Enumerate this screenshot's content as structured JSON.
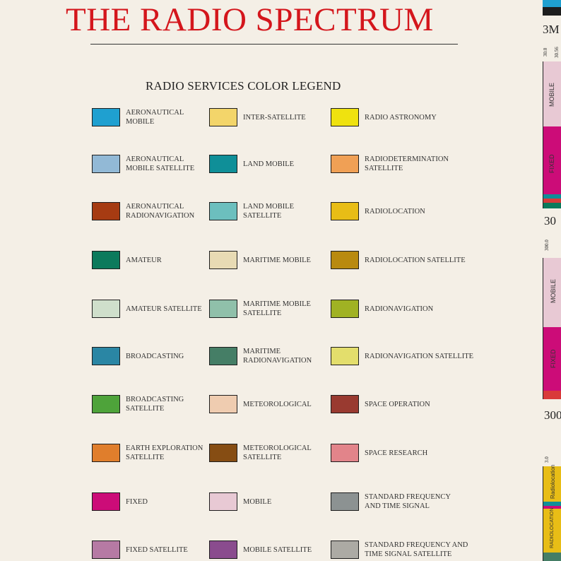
{
  "header": {
    "title": "THE RADIO SPECTRUM",
    "legend_title": "RADIO SERVICES COLOR LEGEND"
  },
  "legend": {
    "col1": [
      {
        "label": "AERONAUTICAL\nMOBILE",
        "color": "#1fa0d0"
      },
      {
        "label": "AERONAUTICAL\nMOBILE SATELLITE",
        "color": "#92b9d6"
      },
      {
        "label": "AERONAUTICAL\nRADIONAVIGATION",
        "color": "#a63b12"
      },
      {
        "label": "AMATEUR",
        "color": "#0c7a5c"
      },
      {
        "label": "AMATEUR SATELLITE",
        "color": "#cfdfcb"
      },
      {
        "label": "BROADCASTING",
        "color": "#2a86a4"
      },
      {
        "label": "BROADCASTING\nSATELLITE",
        "color": "#4ea33a"
      },
      {
        "label": "EARTH EXPLORATION\nSATELLITE",
        "color": "#e07e2c"
      },
      {
        "label": "FIXED",
        "color": "#cc0c78"
      },
      {
        "label": "FIXED SATELLITE",
        "color": "#b67aa4"
      }
    ],
    "col2": [
      {
        "label": "INTER-SATELLITE",
        "color": "#f3d56a"
      },
      {
        "label": "LAND MOBILE",
        "color": "#0f8f98"
      },
      {
        "label": "LAND MOBILE\nSATELLITE",
        "color": "#6cbfbe"
      },
      {
        "label": "MARITIME MOBILE",
        "color": "#e8dbb4"
      },
      {
        "label": "MARITIME MOBILE\nSATELLITE",
        "color": "#90c0aa"
      },
      {
        "label": "MARITIME\nRADIONAVIGATION",
        "color": "#457e66"
      },
      {
        "label": "METEOROLOGICAL",
        "color": "#efccb0"
      },
      {
        "label": "METEOROLOGICAL\nSATELLITE",
        "color": "#864d13"
      },
      {
        "label": "MOBILE",
        "color": "#e8c9d4"
      },
      {
        "label": "MOBILE SATELLITE",
        "color": "#8a4c8e"
      }
    ],
    "col3": [
      {
        "label": "RADIO ASTRONOMY",
        "color": "#efe20f"
      },
      {
        "label": "RADIODETERMINATION\nSATELLITE",
        "color": "#f0a055"
      },
      {
        "label": "RADIOLOCATION",
        "color": "#e8bd16"
      },
      {
        "label": "RADIOLOCATION SATELLITE",
        "color": "#b98a0f"
      },
      {
        "label": "RADIONAVIGATION",
        "color": "#a0b223"
      },
      {
        "label": "RADIONAVIGATION SATELLITE",
        "color": "#e3de6c"
      },
      {
        "label": "SPACE OPERATION",
        "color": "#993a30"
      },
      {
        "label": "SPACE RESEARCH",
        "color": "#e2848a"
      },
      {
        "label": "STANDARD FREQUENCY\nAND TIME SIGNAL",
        "color": "#8c9292"
      },
      {
        "label": "STANDARD FREQUENCY AND\nTIME SIGNAL SATELLITE",
        "color": "#acaaa4"
      }
    ]
  },
  "spectrum": {
    "freq_labels": [
      "3M",
      "30",
      "300"
    ],
    "band1": {
      "start_a": "30.0",
      "start_b": "30.56",
      "labels": [
        "MOBILE",
        "FIXED"
      ]
    },
    "band2": {
      "start": "300.0",
      "labels": [
        "MOBILE",
        "FIXED"
      ]
    },
    "band3": {
      "start": "3.0",
      "labels": [
        "Radiolocation",
        "RADIOLOCATION"
      ]
    }
  }
}
